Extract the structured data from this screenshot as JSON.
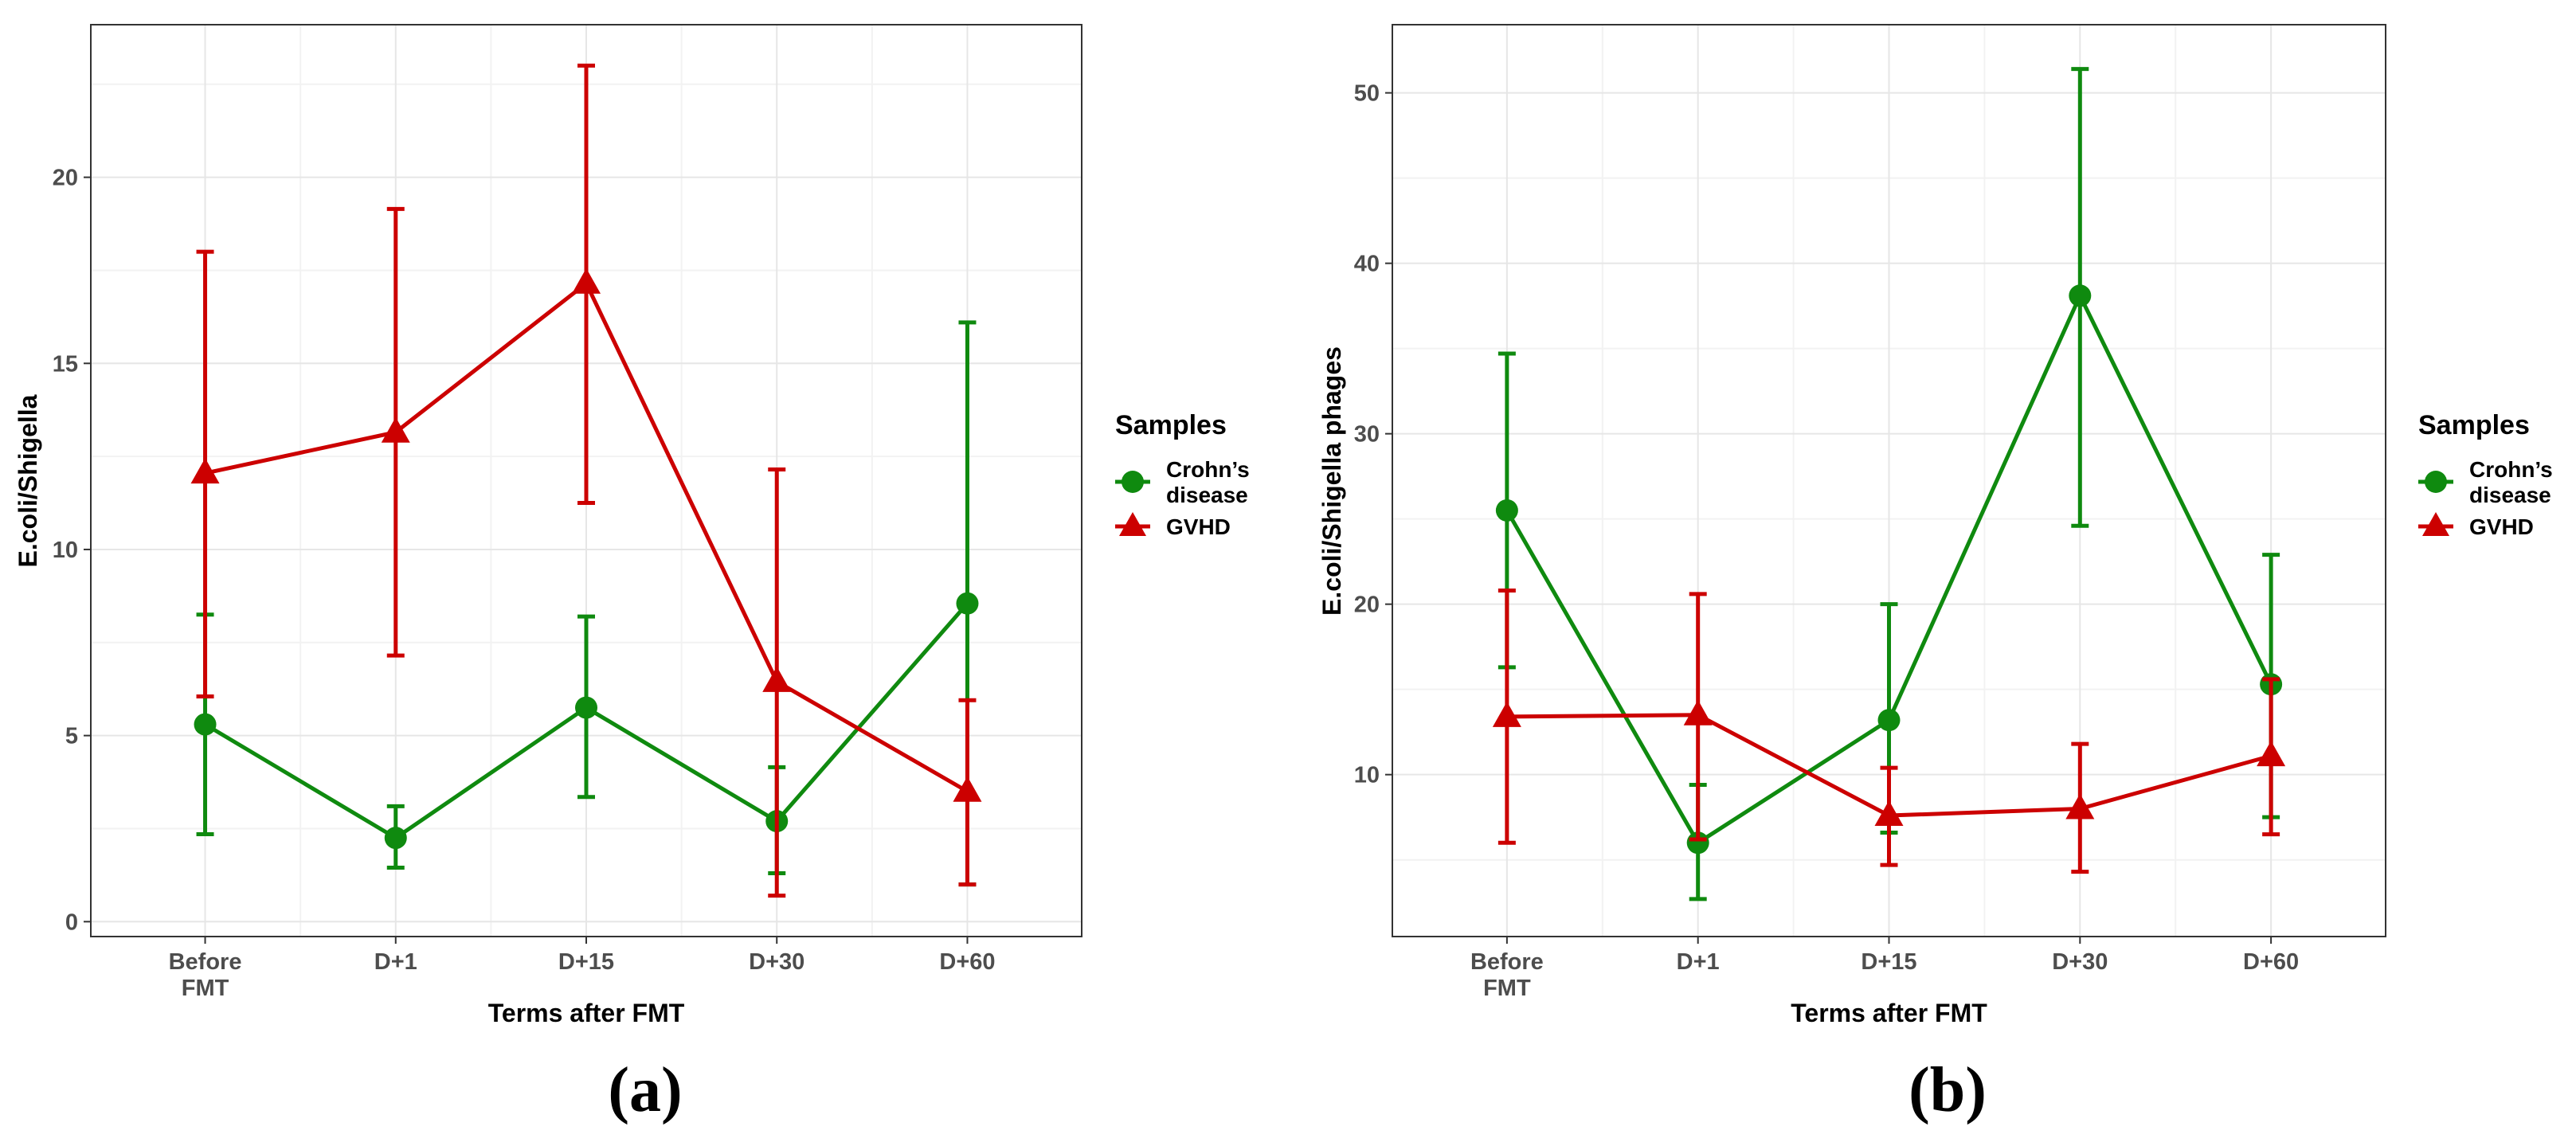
{
  "colors": {
    "crohn": "#0f8a0f",
    "gvhd": "#cc0000",
    "grid": "#e6e6e6",
    "panel_border": "#333333"
  },
  "chart_data": [
    {
      "type": "line",
      "panel_label": "(a)",
      "title": "",
      "xlabel": "Terms after FMT",
      "ylabel": "E.coli/Shigella",
      "categories": [
        [
          "Before",
          "FMT"
        ],
        [
          "D+1"
        ],
        [
          "D+15"
        ],
        [
          "D+30"
        ],
        [
          "D+60"
        ]
      ],
      "ylim": [
        -0.4,
        24.1
      ],
      "yticks": [
        0,
        5,
        10,
        15,
        20
      ],
      "grid": true,
      "legend": {
        "title": "Samples",
        "position": "right"
      },
      "series": [
        {
          "name": "Crohn’s disease",
          "label_lines": [
            "Crohn’s",
            "disease"
          ],
          "color_key": "crohn",
          "marker": "circle",
          "values": [
            5.3,
            2.25,
            5.75,
            2.7,
            8.55
          ],
          "error_low": [
            2.35,
            1.45,
            3.35,
            1.3,
            1.0
          ],
          "error_high": [
            8.25,
            3.1,
            8.2,
            4.15,
            16.1
          ]
        },
        {
          "name": "GVHD",
          "label_lines": [
            "GVHD"
          ],
          "color_key": "gvhd",
          "marker": "triangle",
          "values": [
            12.05,
            13.15,
            17.15,
            6.45,
            3.5
          ],
          "error_low": [
            6.05,
            7.15,
            11.25,
            0.7,
            1.0
          ],
          "error_high": [
            18.0,
            19.15,
            23.0,
            12.15,
            5.95
          ]
        }
      ]
    },
    {
      "type": "line",
      "panel_label": "(b)",
      "title": "",
      "xlabel": "Terms after FMT",
      "ylabel": "E.coli/Shigella phages",
      "categories": [
        [
          "Before",
          "FMT"
        ],
        [
          "D+1"
        ],
        [
          "D+15"
        ],
        [
          "D+30"
        ],
        [
          "D+60"
        ]
      ],
      "ylim": [
        0.5,
        54.0
      ],
      "yticks": [
        10,
        20,
        30,
        40,
        50
      ],
      "grid": true,
      "legend": {
        "title": "Samples",
        "position": "right"
      },
      "series": [
        {
          "name": "Crohn’s disease",
          "label_lines": [
            "Crohn’s",
            "disease"
          ],
          "color_key": "crohn",
          "marker": "circle",
          "values": [
            25.5,
            6.0,
            13.2,
            38.1,
            15.3
          ],
          "error_low": [
            16.3,
            2.7,
            6.6,
            24.6,
            7.5
          ],
          "error_high": [
            34.7,
            9.4,
            20.0,
            51.4,
            22.9
          ]
        },
        {
          "name": "GVHD",
          "label_lines": [
            "GVHD"
          ],
          "color_key": "gvhd",
          "marker": "triangle",
          "values": [
            13.4,
            13.5,
            7.6,
            8.0,
            11.1
          ],
          "error_low": [
            6.0,
            6.2,
            4.7,
            4.3,
            6.5
          ],
          "error_high": [
            20.8,
            20.6,
            10.4,
            11.8,
            15.6
          ]
        }
      ]
    }
  ]
}
